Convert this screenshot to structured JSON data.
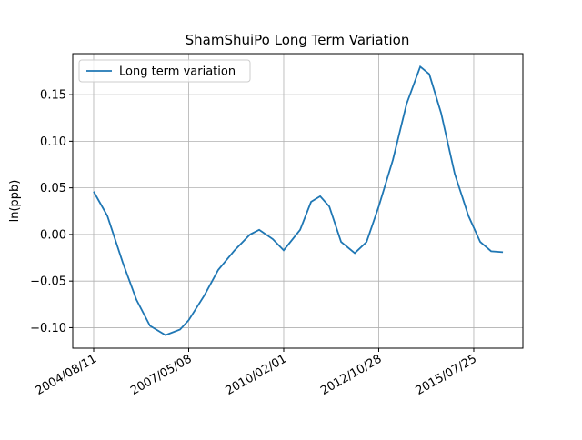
{
  "chart_data": {
    "type": "line",
    "title": "ShamShuiPo Long Term Variation",
    "y_label": "ln(ppb)",
    "x": [
      "2004/08/11",
      "2005/01/02",
      "2005/06/13",
      "2005/11/04",
      "2006/03/27",
      "2006/09/06",
      "2007/02/06",
      "2007/05/08",
      "2007/10/22",
      "2008/03/14",
      "2008/09/02",
      "2009/02/12",
      "2009/05/19",
      "2009/10/09",
      "2010/02/01",
      "2010/07/24",
      "2010/11/16",
      "2011/02/20",
      "2011/05/27",
      "2011/09/28",
      "2012/02/19",
      "2012/06/22",
      "2012/10/28",
      "2013/03/26",
      "2013/08/17",
      "2014/01/08",
      "2014/04/13",
      "2014/08/16",
      "2015/01/06",
      "2015/05/30",
      "2015/10/01",
      "2016/01/24",
      "2016/05/27"
    ],
    "series": [
      {
        "name": "Long term variation",
        "color": "#1f77b4",
        "values": [
          0.046,
          0.02,
          -0.03,
          -0.07,
          -0.098,
          -0.108,
          -0.102,
          -0.092,
          -0.065,
          -0.038,
          -0.017,
          0.0,
          0.005,
          -0.005,
          -0.017,
          0.005,
          0.035,
          0.041,
          0.03,
          -0.008,
          -0.02,
          -0.008,
          0.03,
          0.08,
          0.14,
          0.18,
          0.172,
          0.13,
          0.065,
          0.02,
          -0.008,
          -0.018,
          -0.019
        ]
      }
    ],
    "xlim": [
      "2004/01/04",
      "2016/12/23"
    ],
    "xticks": [
      "2004/08/11",
      "2007/05/08",
      "2010/02/01",
      "2012/10/28",
      "2015/07/25"
    ],
    "ylim": [
      -0.122,
      0.194
    ],
    "yticks": [
      {
        "value": -0.1,
        "label": "−0.10"
      },
      {
        "value": -0.05,
        "label": "−0.05"
      },
      {
        "value": 0,
        "label": "0.00"
      },
      {
        "value": 0.05,
        "label": "0.05"
      },
      {
        "value": 0.1,
        "label": "0.10"
      },
      {
        "value": 0.15,
        "label": "0.15"
      }
    ],
    "grid": true,
    "legend": "upper left"
  }
}
